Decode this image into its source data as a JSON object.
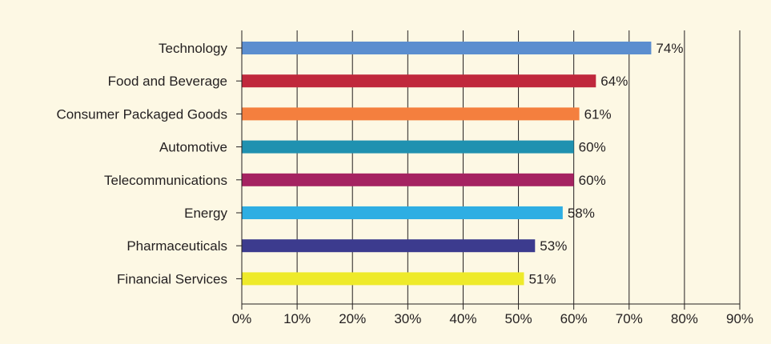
{
  "chart_data": {
    "type": "bar",
    "orientation": "horizontal",
    "title": "",
    "xlabel": "",
    "ylabel": "",
    "xlim": [
      0,
      90
    ],
    "grid": true,
    "legend": "none",
    "background": "#fdf8e4",
    "tick_labels": [
      "0%",
      "10%",
      "20%",
      "30%",
      "40%",
      "50%",
      "60%",
      "70%",
      "80%",
      "90%"
    ],
    "tick_values": [
      0,
      10,
      20,
      30,
      40,
      50,
      60,
      70,
      80,
      90
    ],
    "categories": [
      "Technology",
      "Food and Beverage",
      "Consumer Packaged Goods",
      "Automotive",
      "Telecommunications",
      "Energy",
      "Pharmaceuticals",
      "Financial Services"
    ],
    "values": [
      74,
      64,
      61,
      60,
      60,
      58,
      53,
      51
    ],
    "data_labels": [
      "74%",
      "64%",
      "61%",
      "60%",
      "60%",
      "58%",
      "53%",
      "51%"
    ],
    "colors": [
      "#5b8ecf",
      "#c0283c",
      "#f47f3e",
      "#1f91b0",
      "#a52361",
      "#2eaee3",
      "#3c3b8e",
      "#eeea2a"
    ]
  }
}
